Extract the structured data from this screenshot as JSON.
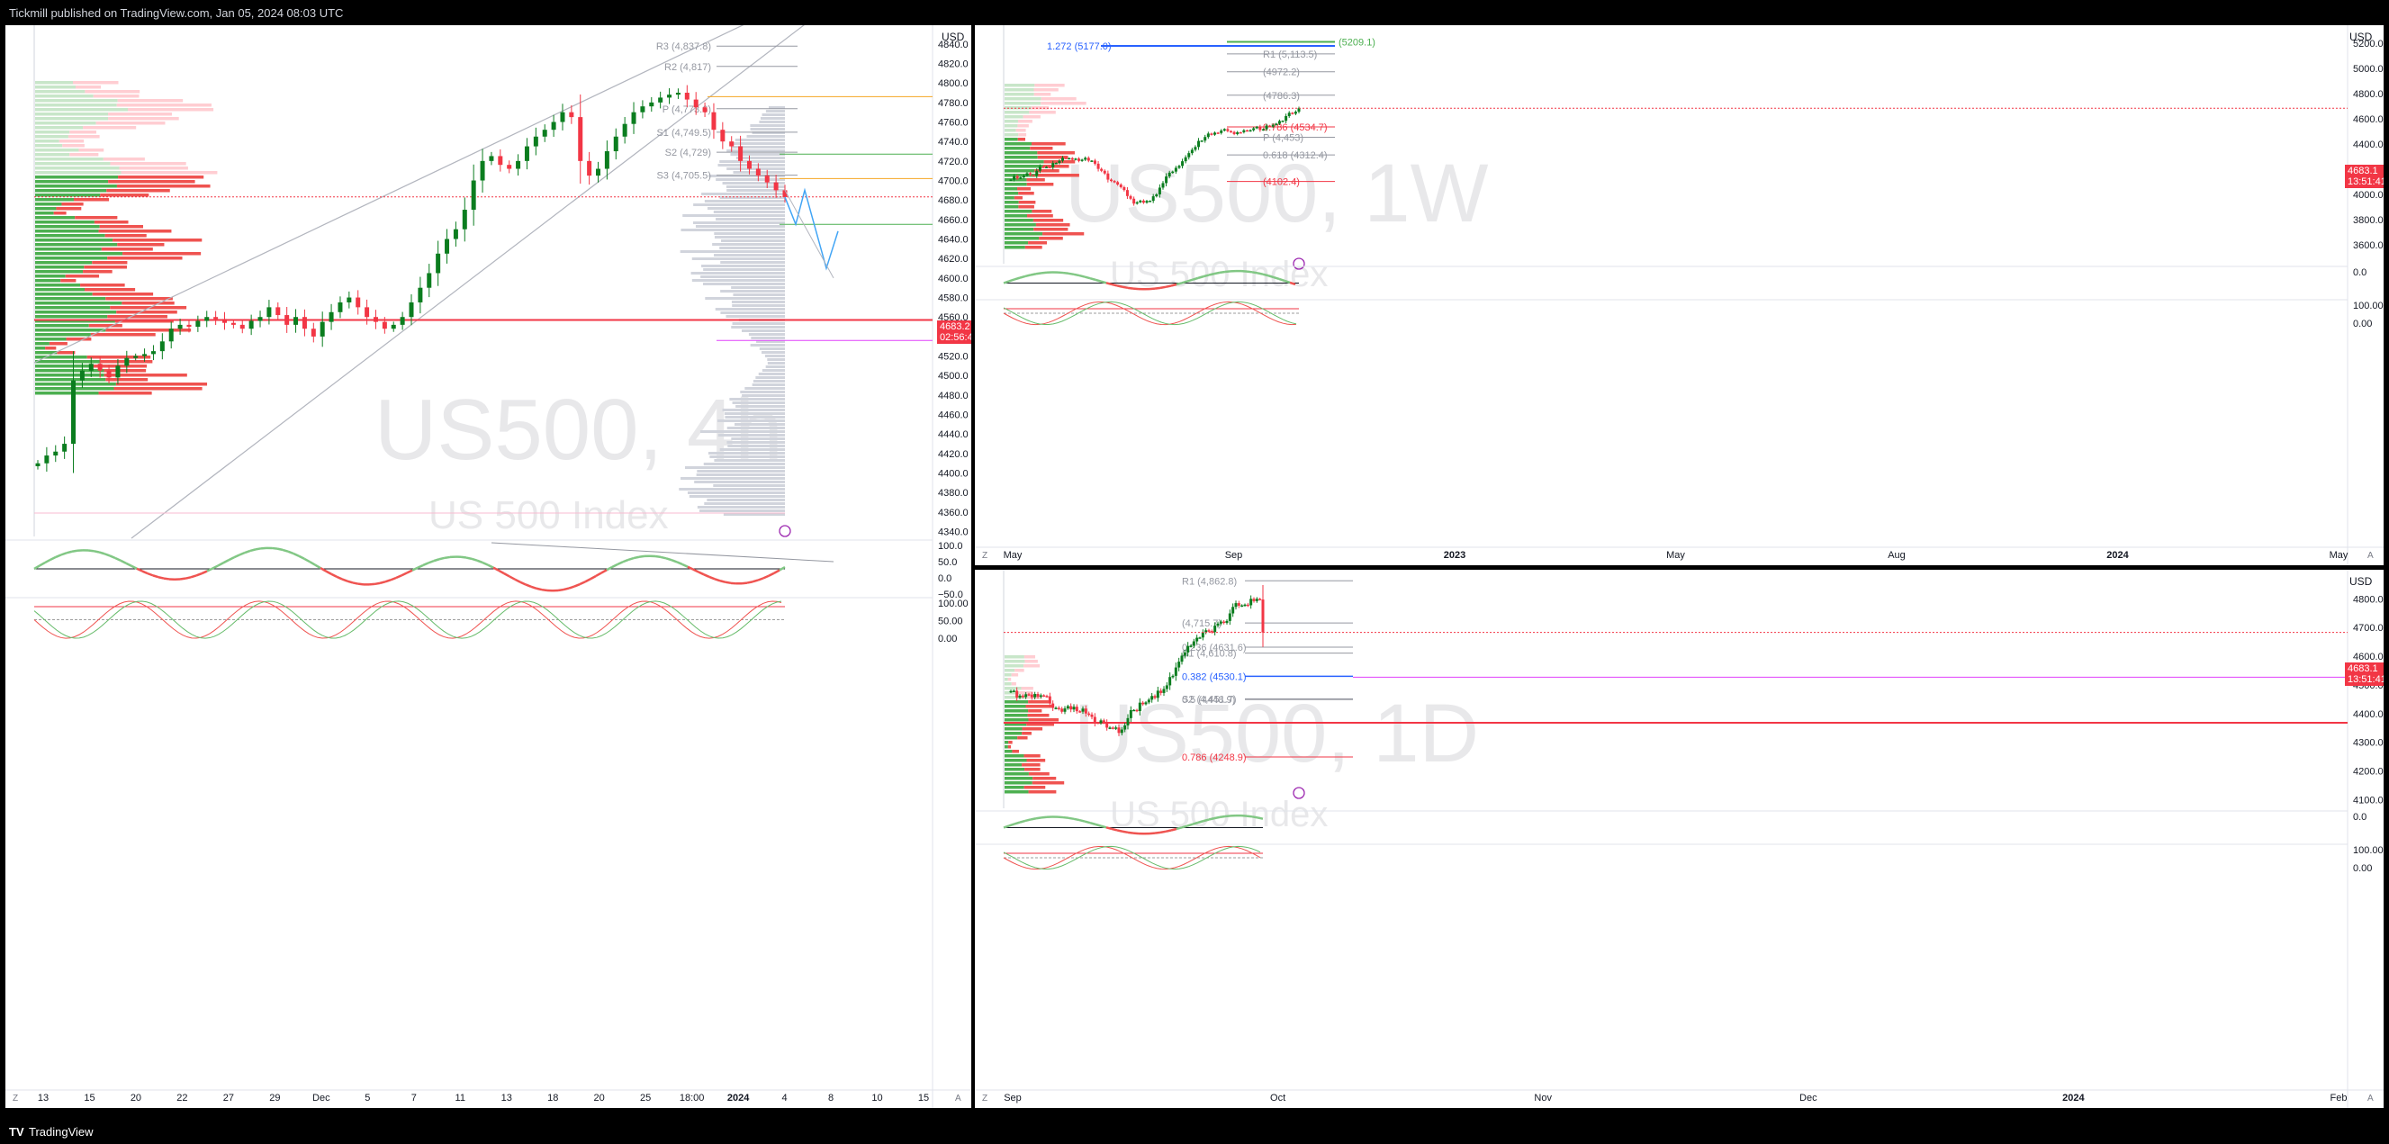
{
  "header": {
    "published_by": "Tickmill published on TradingView.com, Jan 05, 2024 08:03 UTC"
  },
  "footer": {
    "brand": "TradingView"
  },
  "colors": {
    "up": "#089981",
    "upBody": "#0b7d1f",
    "down": "#f23645",
    "blue": "#2962ff",
    "orange": "#f5a623",
    "purple": "#e040fb",
    "grey": "#9598a1"
  },
  "chart_data": [
    {
      "type": "candlestick",
      "symbol_watermark": "US500, 4h",
      "subtitle_watermark": "US 500 Index",
      "currency": "USD",
      "y_ticks": [
        4840.0,
        4820.0,
        4800.0,
        4780.0,
        4760.0,
        4740.0,
        4720.0,
        4700.0,
        4680.0,
        4660.0,
        4640.0,
        4620.0,
        4600.0,
        4580.0,
        4560.0,
        4540.0,
        4520.0,
        4500.0,
        4480.0,
        4460.0,
        4440.0,
        4420.0,
        4400.0,
        4380.0,
        4360.0,
        4340.0
      ],
      "ylim": [
        4335,
        4850
      ],
      "x_ticks": [
        "13",
        "15",
        "20",
        "22",
        "27",
        "29",
        "Dec",
        "5",
        "7",
        "11",
        "13",
        "18",
        "20",
        "25",
        "18:00",
        "2024",
        "4",
        "8",
        "10",
        "15"
      ],
      "last_price": "4683.2",
      "countdown": "02:56:42",
      "pivot_levels": [
        {
          "label": "R3 (4,837.8)",
          "value": 4837.8
        },
        {
          "label": "R2 (4,817)",
          "value": 4817
        },
        {
          "label": "P (4,773.6)",
          "value": 4773.6
        },
        {
          "label": "S1 (4,749.5)",
          "value": 4749.5
        },
        {
          "label": "S2 (4,729)",
          "value": 4729
        },
        {
          "label": "S3 (4,705.5)",
          "value": 4705.5
        }
      ],
      "oscillator_ticks": [
        "100.0",
        "50.0",
        "0.0",
        "−50.0"
      ],
      "stoch_ticks": [
        "100.00",
        "50.00",
        "0.00"
      ],
      "close_path": [
        4410,
        4418,
        4422,
        4430,
        4495,
        4505,
        4512,
        4505,
        4498,
        4510,
        4518,
        4520,
        4522,
        4525,
        4535,
        4548,
        4552,
        4550,
        4556,
        4560,
        4558,
        4554,
        4552,
        4548,
        4556,
        4560,
        4570,
        4562,
        4552,
        4560,
        4548,
        4540,
        4555,
        4565,
        4575,
        4580,
        4570,
        4560,
        4555,
        4548,
        4552,
        4560,
        4575,
        4590,
        4605,
        4625,
        4640,
        4650,
        4670,
        4700,
        4720,
        4725,
        4716,
        4712,
        4720,
        4735,
        4745,
        4752,
        4760,
        4770,
        4765,
        4720,
        4705,
        4712,
        4730,
        4745,
        4758,
        4770,
        4776,
        4780,
        4785,
        4788,
        4790,
        4783,
        4775,
        4770,
        4752,
        4740,
        4735,
        4720,
        4712,
        4705,
        4698,
        4690,
        4683
      ]
    },
    {
      "type": "candlestick",
      "symbol_watermark": "US500, 1W",
      "subtitle_watermark": "US 500 Index",
      "currency": "USD",
      "y_ticks": [
        5200.0,
        5000.0,
        4800.0,
        4600.0,
        4400.0,
        4200.0,
        4000.0,
        3800.0,
        3600.0
      ],
      "ylim": [
        3450,
        5270
      ],
      "x_ticks": [
        "May",
        "Sep",
        "2023",
        "May",
        "Aug",
        "2024",
        "May"
      ],
      "last_price": "4683.1",
      "countdown": "13:51:41",
      "levels": [
        {
          "label": "1.272 (5177.0)",
          "value": 5177.0
        },
        {
          "label": "(5209.1)",
          "value": 5209.1
        },
        {
          "label": "R1 (5,113.5)",
          "value": 5113.5
        },
        {
          "label": "(4972.2)",
          "value": 4972.2
        },
        {
          "label": "(4786.3)",
          "value": 4786.3
        },
        {
          "label": "0.786 (4534.7)",
          "value": 4534.7
        },
        {
          "label": "P (4,453)",
          "value": 4453
        },
        {
          "label": "0.618 (4312.4)",
          "value": 4312.4
        },
        {
          "label": "(4102.4)",
          "value": 4102.4
        }
      ],
      "oscillator_ticks": [
        "0.0"
      ],
      "stoch_ticks": [
        "100.00",
        "0.00"
      ]
    },
    {
      "type": "candlestick",
      "symbol_watermark": "US500, 1D",
      "subtitle_watermark": "US 500 Index",
      "currency": "USD",
      "y_ticks": [
        4800.0,
        4700.0,
        4600.0,
        4500.0,
        4400.0,
        4300.0,
        4200.0,
        4100.0
      ],
      "ylim": [
        4070,
        4870
      ],
      "x_ticks": [
        "Sep",
        "Oct",
        "Nov",
        "Dec",
        "2024",
        "Feb"
      ],
      "last_price": "4683.1",
      "countdown": "13:51:41",
      "levels": [
        {
          "label": "R1 (4,862.8)",
          "value": 4862.8
        },
        {
          "label": "(4,715.7)",
          "value": 4715.7
        },
        {
          "label": "0.236 (4631.6)",
          "value": 4631.6
        },
        {
          "label": "S1 (4,610.8)",
          "value": 4610.8
        },
        {
          "label": "0.382 (4530.1)",
          "value": 4530.1
        },
        {
          "label": "S2 (4,451.7)",
          "value": 4451.7
        },
        {
          "label": "0.5 (4448.9)",
          "value": 4448.9
        },
        {
          "label": "0.786 (4248.9)",
          "value": 4248.9
        }
      ],
      "oscillator_ticks": [
        "0.0"
      ],
      "stoch_ticks": [
        "100.00",
        "0.00"
      ]
    }
  ]
}
